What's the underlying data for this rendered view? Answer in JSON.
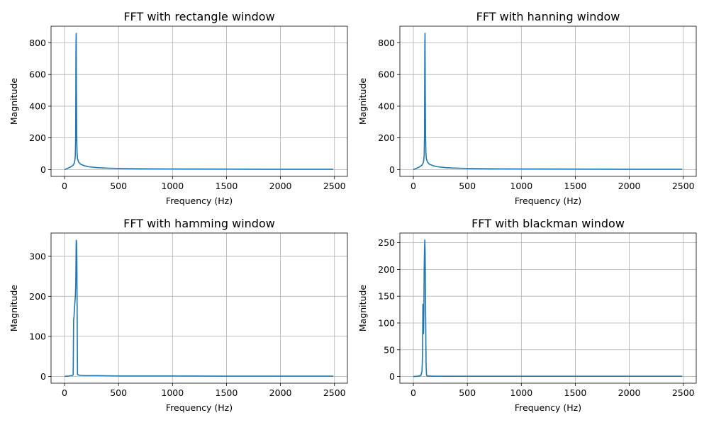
{
  "chart_data": [
    {
      "type": "line",
      "title": "FFT with rectangle window",
      "xlabel": "Frequency (Hz)",
      "ylabel": "Magnitude",
      "xlim": [
        -125,
        2620
      ],
      "ylim": [
        -43,
        905
      ],
      "xticks": [
        0,
        500,
        1000,
        1500,
        2000,
        2500
      ],
      "yticks": [
        0,
        200,
        400,
        600,
        800
      ],
      "grid": true,
      "color": "#1f77b4",
      "x": [
        0,
        30,
        60,
        80,
        90,
        95,
        100,
        103,
        106,
        108,
        110,
        113,
        116,
        120,
        130,
        150,
        180,
        220,
        300,
        400,
        500,
        700,
        1000,
        1500,
        2000,
        2490
      ],
      "y": [
        0,
        8,
        18,
        28,
        40,
        55,
        90,
        200,
        780,
        860,
        520,
        200,
        110,
        70,
        48,
        33,
        25,
        18,
        12,
        9,
        7,
        5,
        4,
        3,
        2,
        2
      ]
    },
    {
      "type": "line",
      "title": "FFT with hanning window",
      "xlabel": "Frequency (Hz)",
      "ylabel": "Magnitude",
      "xlim": [
        -125,
        2620
      ],
      "ylim": [
        -43,
        905
      ],
      "xticks": [
        0,
        500,
        1000,
        1500,
        2000,
        2500
      ],
      "yticks": [
        0,
        200,
        400,
        600,
        800
      ],
      "grid": true,
      "color": "#1f77b4",
      "x": [
        0,
        30,
        60,
        80,
        90,
        95,
        100,
        103,
        106,
        108,
        110,
        113,
        116,
        120,
        130,
        150,
        180,
        220,
        300,
        400,
        500,
        700,
        1000,
        1500,
        2000,
        2490
      ],
      "y": [
        0,
        8,
        18,
        28,
        40,
        55,
        90,
        200,
        780,
        860,
        520,
        200,
        110,
        70,
        48,
        33,
        25,
        18,
        12,
        9,
        7,
        5,
        4,
        3,
        2,
        2
      ]
    },
    {
      "type": "line",
      "title": "FFT with hamming window",
      "xlabel": "Frequency (Hz)",
      "ylabel": "Magnitude",
      "xlim": [
        -125,
        2620
      ],
      "ylim": [
        -17,
        358
      ],
      "xticks": [
        0,
        500,
        1000,
        1500,
        2000,
        2500
      ],
      "yticks": [
        0,
        100,
        200,
        300
      ],
      "grid": true,
      "color": "#1f77b4",
      "x": [
        0,
        40,
        70,
        80,
        84,
        88,
        92,
        96,
        100,
        104,
        108,
        111,
        114,
        117,
        120,
        123,
        140,
        200,
        300,
        500,
        1000,
        1500,
        2000,
        2490
      ],
      "y": [
        0,
        1,
        2,
        4,
        140,
        150,
        170,
        185,
        200,
        230,
        340,
        335,
        295,
        150,
        5,
        4,
        3,
        2,
        2,
        1,
        1,
        0.5,
        0.5,
        0.5
      ]
    },
    {
      "type": "line",
      "title": "FFT with blackman window",
      "xlabel": "Frequency (Hz)",
      "ylabel": "Magnitude",
      "xlim": [
        -125,
        2620
      ],
      "ylim": [
        -12.5,
        268
      ],
      "xticks": [
        0,
        500,
        1000,
        1500,
        2000,
        2500
      ],
      "yticks": [
        0,
        50,
        100,
        150,
        200,
        250
      ],
      "grid": true,
      "color": "#1f77b4",
      "x": [
        0,
        40,
        70,
        80,
        85,
        88,
        91,
        94,
        97,
        100,
        103,
        106,
        109,
        112,
        115,
        118,
        122,
        126,
        140,
        200,
        300,
        500,
        1000,
        1500,
        2000,
        2490
      ],
      "y": [
        0,
        0.5,
        2,
        10,
        40,
        135,
        130,
        80,
        120,
        200,
        235,
        255,
        230,
        160,
        80,
        20,
        3,
        1,
        1,
        0.5,
        0.5,
        0.5,
        0.5,
        0.5,
        0.5,
        0.5
      ]
    }
  ]
}
